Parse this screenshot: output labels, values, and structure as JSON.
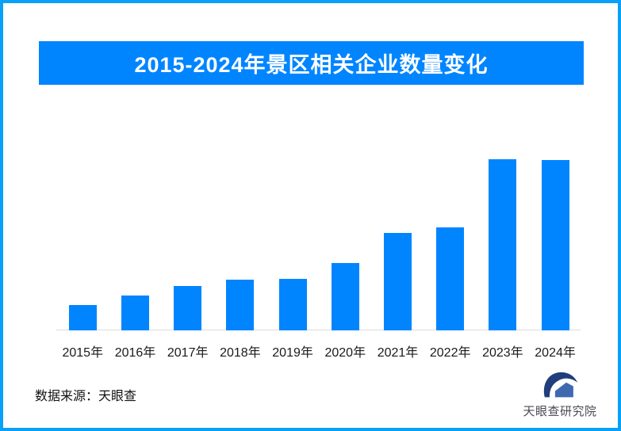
{
  "page": {
    "background": "#ffffff",
    "border_color": "#09a0f8"
  },
  "header": {
    "title": "2015-2024年景区相关企业数量变化",
    "background": "#0085ff",
    "text_color": "#ffffff"
  },
  "chart_data": {
    "type": "bar",
    "title": "2015-2024年景区相关企业数量变化",
    "categories": [
      "2015年",
      "2016年",
      "2017年",
      "2018年",
      "2019年",
      "2020年",
      "2021年",
      "2022年",
      "2023年",
      "2024年"
    ],
    "values": [
      32,
      44,
      56,
      64,
      65,
      85,
      123,
      130,
      216,
      215
    ],
    "xlabel": "",
    "ylabel": "",
    "ylim": [
      0,
      240
    ],
    "bar_color": "#0085ff",
    "axis_line_color": "#dcdcdc",
    "grid": false,
    "legend": false,
    "value_labels": false
  },
  "footer": {
    "source": "数据来源：天眼查"
  },
  "logo": {
    "name": "天眼查研究院",
    "icon": "tianyancha-eye-logo",
    "navy": "#203d7c",
    "light_blue": "#3e69b1",
    "text_color": "#4a4a55"
  }
}
